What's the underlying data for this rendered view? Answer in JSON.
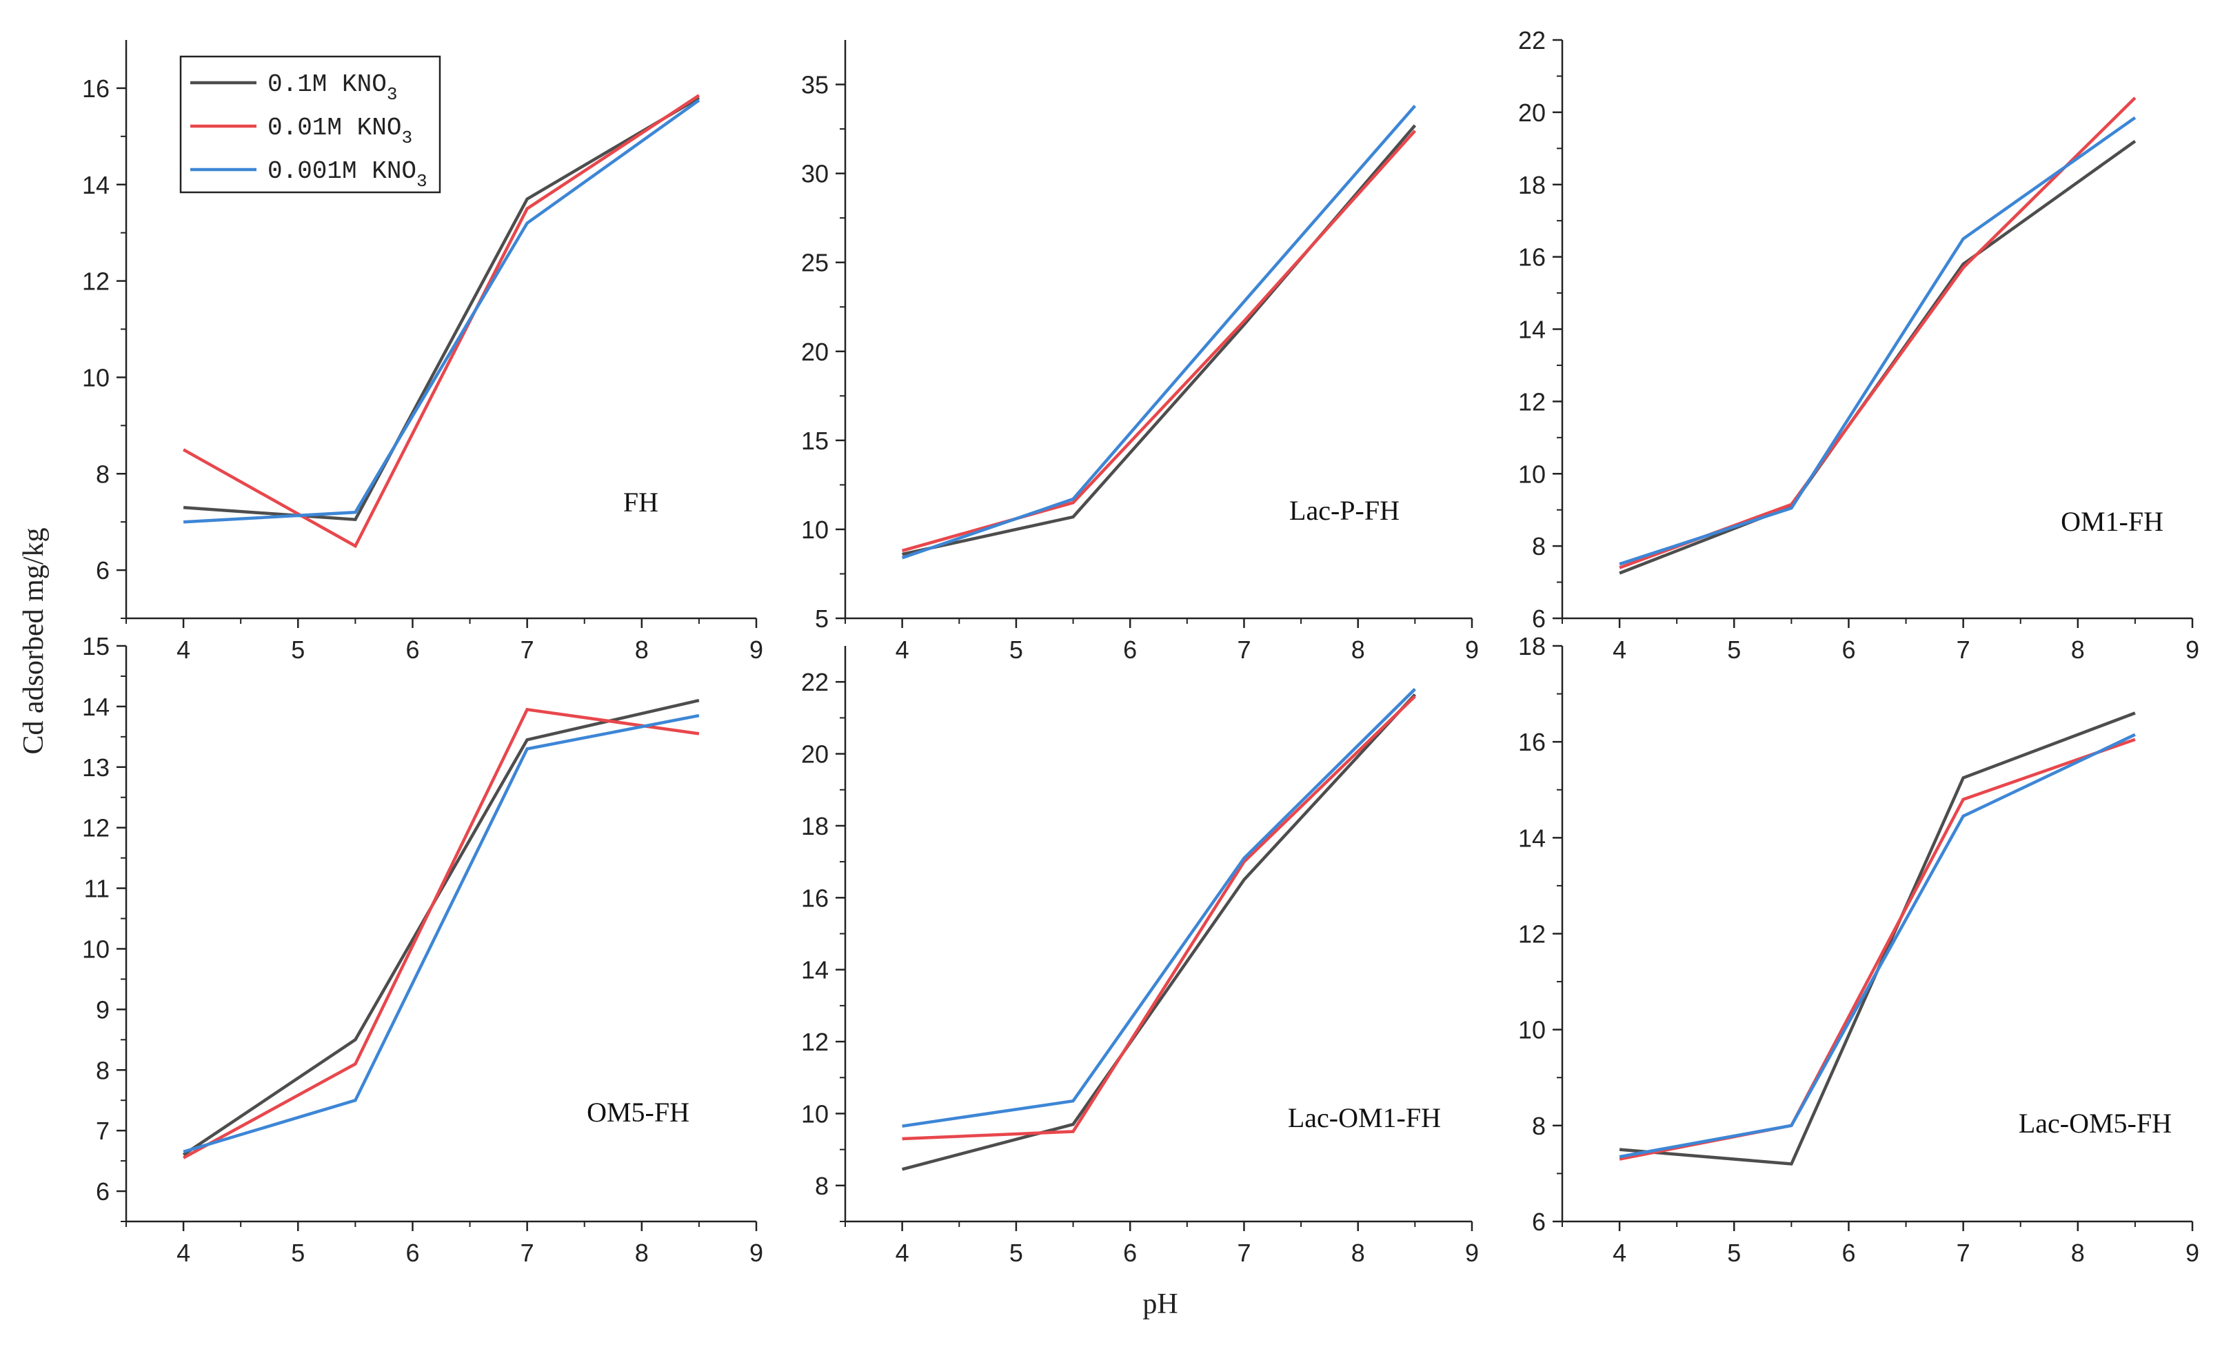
{
  "figure": {
    "ylabel": "Cd adsorbed mg/kg",
    "xlabel": "pH"
  },
  "legend": {
    "entries": [
      {
        "prefix": "0.1M KNO",
        "sub": "3",
        "color": "#4d4d4d"
      },
      {
        "prefix": "0.01M KNO",
        "sub": "3",
        "color": "#e8474c"
      },
      {
        "prefix": "0.001M KNO",
        "sub": "3",
        "color": "#3d86d6"
      }
    ]
  },
  "chart_data": [
    {
      "type": "line",
      "title": "FH",
      "x": [
        4,
        5.5,
        7,
        8.5
      ],
      "xlim": [
        3.5,
        9
      ],
      "xticks": [
        4,
        5,
        6,
        7,
        8,
        9
      ],
      "ylim": [
        5,
        17
      ],
      "yticks": [
        6,
        8,
        10,
        12,
        14,
        16
      ],
      "series": [
        {
          "name": "0.1M KNO3",
          "color": "#4d4d4d",
          "values": [
            7.3,
            7.05,
            13.7,
            15.8
          ]
        },
        {
          "name": "0.01M KNO3",
          "color": "#e8474c",
          "values": [
            8.5,
            6.5,
            13.5,
            15.85
          ]
        },
        {
          "name": "0.001M KNO3",
          "color": "#3d86d6",
          "values": [
            7.0,
            7.2,
            13.2,
            15.75
          ]
        }
      ]
    },
    {
      "type": "line",
      "title": "Lac-P-FH",
      "x": [
        4,
        5.5,
        7,
        8.5
      ],
      "xlim": [
        3.5,
        9
      ],
      "xticks": [
        4,
        5,
        6,
        7,
        8,
        9
      ],
      "ylim": [
        5,
        37.5
      ],
      "yticks": [
        5,
        10,
        15,
        20,
        25,
        30,
        35
      ],
      "series": [
        {
          "name": "0.1M KNO3",
          "color": "#4d4d4d",
          "values": [
            8.6,
            10.7,
            21.5,
            32.7
          ]
        },
        {
          "name": "0.01M KNO3",
          "color": "#e8474c",
          "values": [
            8.8,
            11.5,
            21.7,
            32.4
          ]
        },
        {
          "name": "0.001M KNO3",
          "color": "#3d86d6",
          "values": [
            8.4,
            11.7,
            22.8,
            33.8
          ]
        }
      ]
    },
    {
      "type": "line",
      "title": "OM1-FH",
      "x": [
        4,
        5.5,
        7,
        8.5
      ],
      "xlim": [
        3.5,
        9
      ],
      "xticks": [
        4,
        5,
        6,
        7,
        8,
        9
      ],
      "ylim": [
        6,
        22
      ],
      "yticks": [
        6,
        8,
        10,
        12,
        14,
        16,
        18,
        20,
        22
      ],
      "series": [
        {
          "name": "0.1M KNO3",
          "color": "#4d4d4d",
          "values": [
            7.25,
            9.1,
            15.8,
            19.2
          ]
        },
        {
          "name": "0.01M KNO3",
          "color": "#e8474c",
          "values": [
            7.4,
            9.15,
            15.7,
            20.4
          ]
        },
        {
          "name": "0.001M KNO3",
          "color": "#3d86d6",
          "values": [
            7.5,
            9.05,
            16.5,
            19.85
          ]
        }
      ]
    },
    {
      "type": "line",
      "title": "OM5-FH",
      "x": [
        4,
        5.5,
        7,
        8.5
      ],
      "xlim": [
        3.5,
        9
      ],
      "xticks": [
        4,
        5,
        6,
        7,
        8,
        9
      ],
      "ylim": [
        5.5,
        15
      ],
      "yticks": [
        6,
        7,
        8,
        9,
        10,
        11,
        12,
        13,
        14,
        15
      ],
      "series": [
        {
          "name": "0.1M KNO3",
          "color": "#4d4d4d",
          "values": [
            6.6,
            8.5,
            13.45,
            14.1
          ]
        },
        {
          "name": "0.01M KNO3",
          "color": "#e8474c",
          "values": [
            6.55,
            8.1,
            13.95,
            13.55
          ]
        },
        {
          "name": "0.001M KNO3",
          "color": "#3d86d6",
          "values": [
            6.65,
            7.5,
            13.3,
            13.85
          ]
        }
      ]
    },
    {
      "type": "line",
      "title": "Lac-OM1-FH",
      "x": [
        4,
        5.5,
        7,
        8.5
      ],
      "xlim": [
        3.5,
        9
      ],
      "xticks": [
        4,
        5,
        6,
        7,
        8,
        9
      ],
      "ylim": [
        7,
        23
      ],
      "yticks": [
        8,
        10,
        12,
        14,
        16,
        18,
        20,
        22
      ],
      "series": [
        {
          "name": "0.1M KNO3",
          "color": "#4d4d4d",
          "values": [
            8.45,
            9.7,
            16.5,
            21.65
          ]
        },
        {
          "name": "0.01M KNO3",
          "color": "#e8474c",
          "values": [
            9.3,
            9.5,
            17.0,
            21.6
          ]
        },
        {
          "name": "0.001M KNO3",
          "color": "#3d86d6",
          "values": [
            9.65,
            10.35,
            17.1,
            21.8
          ]
        }
      ]
    },
    {
      "type": "line",
      "title": "Lac-OM5-FH",
      "x": [
        4,
        5.5,
        7,
        8.5
      ],
      "xlim": [
        3.5,
        9
      ],
      "xticks": [
        4,
        5,
        6,
        7,
        8,
        9
      ],
      "ylim": [
        6,
        18
      ],
      "yticks": [
        6,
        8,
        10,
        12,
        14,
        16,
        18
      ],
      "series": [
        {
          "name": "0.1M KNO3",
          "color": "#4d4d4d",
          "values": [
            7.5,
            7.2,
            15.25,
            16.6
          ]
        },
        {
          "name": "0.01M KNO3",
          "color": "#e8474c",
          "values": [
            7.3,
            8.0,
            14.8,
            16.05
          ]
        },
        {
          "name": "0.001M KNO3",
          "color": "#3d86d6",
          "values": [
            7.35,
            8.0,
            14.45,
            16.15
          ]
        }
      ]
    }
  ]
}
